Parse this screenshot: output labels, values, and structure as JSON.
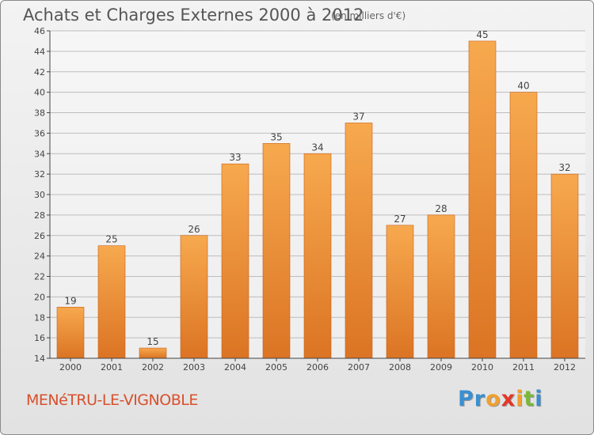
{
  "header": {
    "title": "Achats et Charges Externes 2000 à 2012",
    "subtitle": "(en milliers d'€)"
  },
  "footer": {
    "place": "MENéTRU-LE-VIGNOBLE",
    "logo": [
      "P",
      "r",
      "o",
      "x",
      "i",
      "t",
      "i"
    ],
    "logo_colors": [
      "#3a8fd0",
      "#3a8fd0",
      "#f0a030",
      "#e2382a",
      "#f0a030",
      "#7bb83a",
      "#3a8fd0"
    ]
  },
  "chart_data": {
    "type": "bar",
    "title": "Achats et Charges Externes 2000 à 2012",
    "subtitle": "(en milliers d'€)",
    "categories": [
      "2000",
      "2001",
      "2002",
      "2003",
      "2004",
      "2005",
      "2006",
      "2007",
      "2008",
      "2009",
      "2010",
      "2011",
      "2012"
    ],
    "values": [
      19,
      25,
      15,
      26,
      33,
      35,
      34,
      37,
      27,
      28,
      45,
      40,
      32
    ],
    "value_labels": [
      "19",
      "25",
      "15",
      "26",
      "33",
      "35",
      "34",
      "37",
      "27",
      "28",
      "45",
      "40",
      "32"
    ],
    "ylim": [
      14,
      46
    ],
    "yticks": [
      "14",
      "16",
      "18",
      "20",
      "22",
      "24",
      "26",
      "28",
      "30",
      "32",
      "34",
      "36",
      "38",
      "40",
      "42",
      "44",
      "46"
    ],
    "grid": true,
    "colors": {
      "bar_light": "#f7a94e",
      "bar_dark": "#db7424",
      "bar_edge": "#c8601a",
      "grid": "#bdbdbd",
      "axis": "#444444",
      "text": "#444444"
    }
  }
}
